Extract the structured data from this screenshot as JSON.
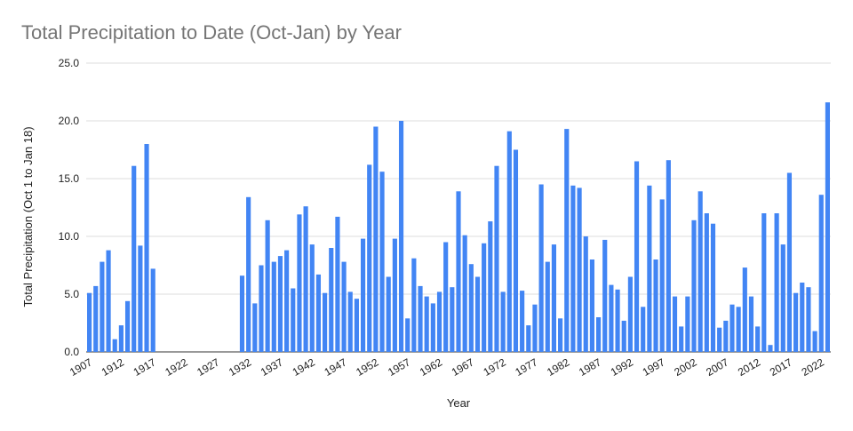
{
  "chart_data": {
    "type": "bar",
    "title": "Total Precipitation to Date (Oct-Jan) by Year",
    "x_label": "Year",
    "y_label": "Total Precipitation (Oct 1 to Jan 18)",
    "color": "#4285f4",
    "grid": true,
    "x": [
      1907,
      1908,
      1909,
      1910,
      1911,
      1912,
      1913,
      1914,
      1915,
      1916,
      1917,
      1918,
      1919,
      1920,
      1921,
      1922,
      1923,
      1924,
      1925,
      1926,
      1927,
      1928,
      1929,
      1930,
      1931,
      1932,
      1933,
      1934,
      1935,
      1936,
      1937,
      1938,
      1939,
      1940,
      1941,
      1942,
      1943,
      1944,
      1945,
      1946,
      1947,
      1948,
      1949,
      1950,
      1951,
      1952,
      1953,
      1954,
      1955,
      1956,
      1957,
      1958,
      1959,
      1960,
      1961,
      1962,
      1963,
      1964,
      1965,
      1966,
      1967,
      1968,
      1969,
      1970,
      1971,
      1972,
      1973,
      1974,
      1975,
      1976,
      1977,
      1978,
      1979,
      1980,
      1981,
      1982,
      1983,
      1984,
      1985,
      1986,
      1987,
      1988,
      1989,
      1990,
      1991,
      1992,
      1993,
      1994,
      1995,
      1996,
      1997,
      1998,
      1999,
      2000,
      2001,
      2002,
      2003,
      2004,
      2005,
      2006,
      2007,
      2008,
      2009,
      2010,
      2011,
      2012,
      2013,
      2014,
      2015,
      2016,
      2017,
      2018,
      2019,
      2020,
      2021,
      2022,
      2023
    ],
    "values": [
      5.1,
      5.7,
      7.8,
      8.8,
      1.1,
      2.3,
      4.4,
      16.1,
      9.2,
      18.0,
      7.2,
      null,
      null,
      null,
      null,
      null,
      null,
      null,
      null,
      null,
      null,
      null,
      null,
      null,
      6.6,
      13.4,
      4.2,
      7.5,
      11.4,
      7.8,
      8.3,
      8.8,
      5.5,
      11.9,
      12.6,
      9.3,
      6.7,
      5.1,
      9.0,
      11.7,
      7.8,
      5.2,
      4.6,
      9.8,
      16.2,
      19.5,
      15.6,
      6.5,
      9.8,
      20.0,
      2.9,
      8.1,
      5.7,
      4.8,
      4.2,
      5.2,
      9.5,
      5.6,
      13.9,
      10.1,
      7.6,
      6.5,
      9.4,
      11.3,
      16.1,
      5.2,
      19.1,
      17.5,
      5.3,
      2.3,
      4.1,
      14.5,
      7.8,
      9.3,
      2.9,
      19.3,
      14.4,
      14.2,
      10.0,
      8.0,
      3.0,
      9.7,
      5.8,
      5.4,
      2.7,
      6.5,
      16.5,
      3.9,
      14.4,
      8.0,
      13.2,
      16.6,
      4.8,
      2.2,
      4.8,
      11.4,
      13.9,
      12.0,
      11.1,
      2.1,
      2.7,
      4.1,
      3.9,
      7.3,
      4.8,
      2.2,
      12.0,
      0.6,
      12.0,
      9.3,
      15.5,
      5.1,
      6.0,
      5.6,
      1.8,
      13.6,
      21.6
    ],
    "xlim": [
      1906.5,
      2023.5
    ],
    "xticks": [
      1907,
      1912,
      1917,
      1922,
      1927,
      1932,
      1937,
      1942,
      1947,
      1952,
      1957,
      1962,
      1967,
      1972,
      1977,
      1982,
      1987,
      1992,
      1997,
      2002,
      2007,
      2012,
      2017,
      2022
    ],
    "ylim": [
      0,
      25
    ],
    "yticks": [
      {
        "value": 0,
        "label": "0.0"
      },
      {
        "value": 5,
        "label": "5.0"
      },
      {
        "value": 10,
        "label": "10.0"
      },
      {
        "value": 15,
        "label": "15.0"
      },
      {
        "value": 20,
        "label": "20.0"
      },
      {
        "value": 25,
        "label": "25.0"
      }
    ]
  }
}
